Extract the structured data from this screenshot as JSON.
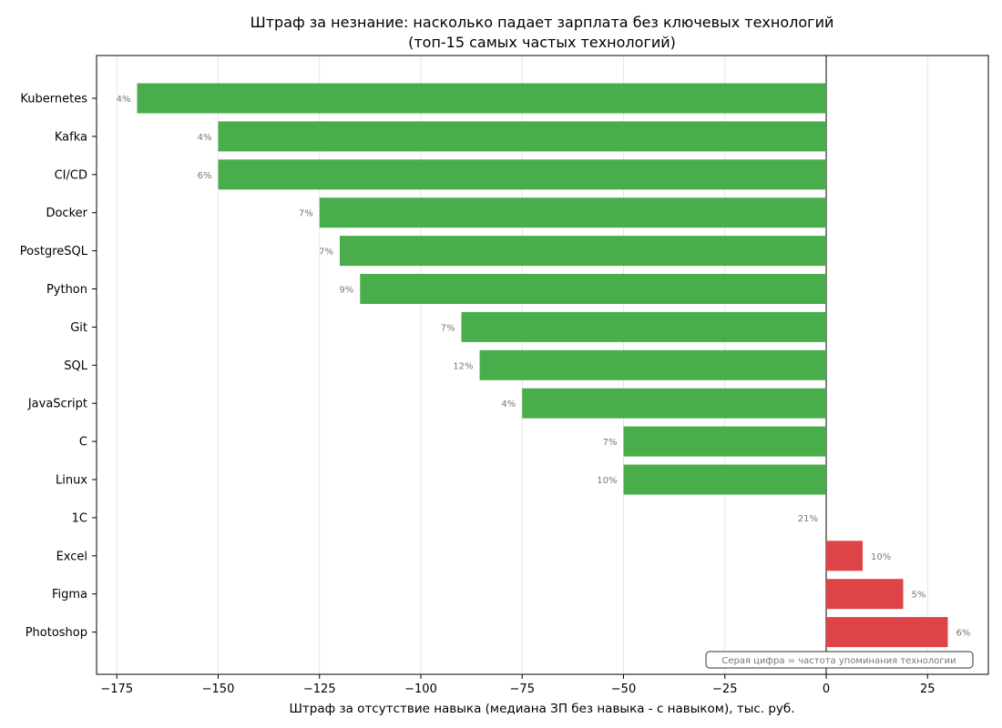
{
  "chart_data": {
    "type": "bar",
    "orientation": "horizontal",
    "title": "Штраф за незнание: насколько падает зарплата без ключевых технологий",
    "subtitle": "(топ-15 самых частых технологий)",
    "xlabel": "Штраф за отсутствие навыка (медиана ЗП без навыка - с навыком), тыс. руб.",
    "ylabel": "",
    "xlim": [
      -180,
      40
    ],
    "xticks": [
      -175,
      -150,
      -125,
      -100,
      -75,
      -50,
      -25,
      0,
      25
    ],
    "xtick_labels": [
      "−175",
      "−150",
      "−125",
      "−100",
      "−75",
      "−50",
      "−25",
      "0",
      "25"
    ],
    "grid": "vertical",
    "categories": [
      "Kubernetes",
      "Kafka",
      "CI/CD",
      "Docker",
      "PostgreSQL",
      "Python",
      "Git",
      "SQL",
      "JavaScript",
      "C",
      "Linux",
      "1C",
      "Excel",
      "Figma",
      "Photoshop"
    ],
    "values": [
      -170,
      -150,
      -150,
      -125,
      -120,
      -115,
      -90,
      -85.5,
      -75,
      -50,
      -50,
      0,
      9,
      19,
      30
    ],
    "frequency_labels": [
      "4%",
      "4%",
      "6%",
      "7%",
      "7%",
      "9%",
      "7%",
      "12%",
      "4%",
      "7%",
      "10%",
      "21%",
      "10%",
      "5%",
      "6%"
    ],
    "colors": {
      "negative": "#4aad4c",
      "positive": "#dd4347"
    },
    "annotation": "Серая цифра = частота упоминания технологии"
  }
}
